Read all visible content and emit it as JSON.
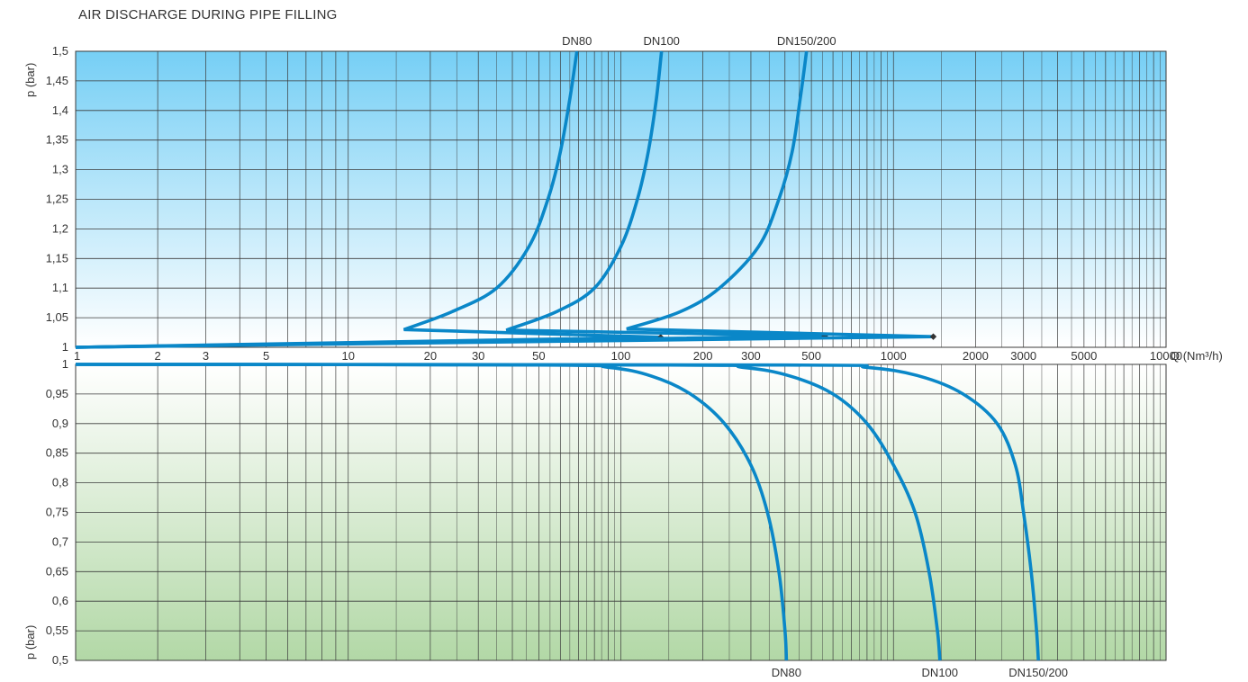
{
  "page": {
    "title": "AIR DISCHARGE DURING PIPE FILLING",
    "ylabel_top": "p (bar)",
    "ylabel_bottom": "p (bar)",
    "xlabel": "Q (Nm³/h)"
  },
  "colors": {
    "curve": "#0a87c8",
    "grid": "#3b3b3b",
    "top_gradient_start": "#76cff5",
    "top_gradient_end": "#ffffff",
    "bottom_gradient_start": "#ffffff",
    "bottom_gradient_end": "#b2d8a6",
    "marker": "#333333"
  },
  "chart_data": [
    {
      "type": "line",
      "panel": "top",
      "title": "AIR DISCHARGE DURING PIPE FILLING",
      "xlabel": "Q (Nm³/h)",
      "ylabel": "p (bar)",
      "xscale": "log",
      "xlim": [
        1,
        10000
      ],
      "ylim": [
        1,
        1.5
      ],
      "grid": true,
      "x_tick_labels": [
        "1",
        "2",
        "3",
        "5",
        "10",
        "20",
        "30",
        "50",
        "100",
        "200",
        "300",
        "500",
        "1000",
        "2000",
        "3000",
        "5000",
        "10000"
      ],
      "x_tick_values": [
        1,
        2,
        3,
        5,
        10,
        20,
        30,
        50,
        100,
        200,
        300,
        500,
        1000,
        2000,
        3000,
        5000,
        10000
      ],
      "y_ticks": [
        1,
        1.05,
        1.1,
        1.15,
        1.2,
        1.25,
        1.3,
        1.35,
        1.4,
        1.45,
        1.5
      ],
      "y_tick_labels": [
        "1",
        "1,05",
        "1,1",
        "1,15",
        "1,2",
        "1,25",
        "1,3",
        "1,35",
        "1,4",
        "1,45",
        "1,5"
      ],
      "series": [
        {
          "name": "DN80",
          "points": [
            [
              1,
              1.0
            ],
            [
              140,
              1.017
            ],
            [
              16,
              1.03
            ],
            [
              24,
              1.06
            ],
            [
              35,
              1.1
            ],
            [
              46,
              1.17
            ],
            [
              54,
              1.25
            ],
            [
              60,
              1.33
            ],
            [
              65,
              1.42
            ],
            [
              69,
              1.5
            ]
          ],
          "marker": [
            140,
            1.017
          ]
        },
        {
          "name": "DN100",
          "points": [
            [
              1,
              1.0
            ],
            [
              560,
              1.019
            ],
            [
              38,
              1.029
            ],
            [
              58,
              1.06
            ],
            [
              80,
              1.1
            ],
            [
              100,
              1.17
            ],
            [
              115,
              1.25
            ],
            [
              126,
              1.33
            ],
            [
              135,
              1.42
            ],
            [
              141,
              1.5
            ]
          ],
          "marker": [
            560,
            1.019
          ]
        },
        {
          "name": "DN150/200",
          "points": [
            [
              1,
              1.0
            ],
            [
              1400,
              1.018
            ],
            [
              105,
              1.031
            ],
            [
              165,
              1.06
            ],
            [
              230,
              1.1
            ],
            [
              320,
              1.17
            ],
            [
              380,
              1.25
            ],
            [
              425,
              1.33
            ],
            [
              455,
              1.42
            ],
            [
              480,
              1.5
            ]
          ],
          "marker": [
            1400,
            1.018
          ]
        }
      ]
    },
    {
      "type": "line",
      "panel": "bottom",
      "ylabel": "p (bar)",
      "xscale": "log",
      "xlim": [
        1,
        10000
      ],
      "ylim": [
        0.5,
        1
      ],
      "grid": true,
      "y_ticks": [
        0.5,
        0.55,
        0.6,
        0.65,
        0.7,
        0.75,
        0.8,
        0.85,
        0.9,
        0.95,
        1
      ],
      "y_tick_labels": [
        "0,5",
        "0,55",
        "0,6",
        "0,65",
        "0,7",
        "0,75",
        "0,8",
        "0,85",
        "0,9",
        "0,95",
        "1"
      ],
      "series": [
        {
          "name": "DN80",
          "points": [
            [
              1,
              1.0
            ],
            [
              50,
              0.999
            ],
            [
              90,
              0.995
            ],
            [
              130,
              0.98
            ],
            [
              180,
              0.95
            ],
            [
              240,
              0.9
            ],
            [
              300,
              0.83
            ],
            [
              345,
              0.75
            ],
            [
              380,
              0.65
            ],
            [
              400,
              0.55
            ],
            [
              405,
              0.5
            ]
          ]
        },
        {
          "name": "DN100",
          "points": [
            [
              1,
              1.0
            ],
            [
              150,
              0.999
            ],
            [
              280,
              0.995
            ],
            [
              420,
              0.98
            ],
            [
              600,
              0.95
            ],
            [
              800,
              0.9
            ],
            [
              1000,
              0.83
            ],
            [
              1200,
              0.75
            ],
            [
              1350,
              0.65
            ],
            [
              1450,
              0.55
            ],
            [
              1480,
              0.5
            ]
          ]
        },
        {
          "name": "DN150/200",
          "points": [
            [
              1,
              1.0
            ],
            [
              400,
              0.999
            ],
            [
              800,
              0.995
            ],
            [
              1250,
              0.98
            ],
            [
              1800,
              0.95
            ],
            [
              2400,
              0.9
            ],
            [
              2800,
              0.83
            ],
            [
              3000,
              0.75
            ],
            [
              3200,
              0.65
            ],
            [
              3350,
              0.55
            ],
            [
              3400,
              0.5
            ]
          ]
        }
      ]
    }
  ]
}
